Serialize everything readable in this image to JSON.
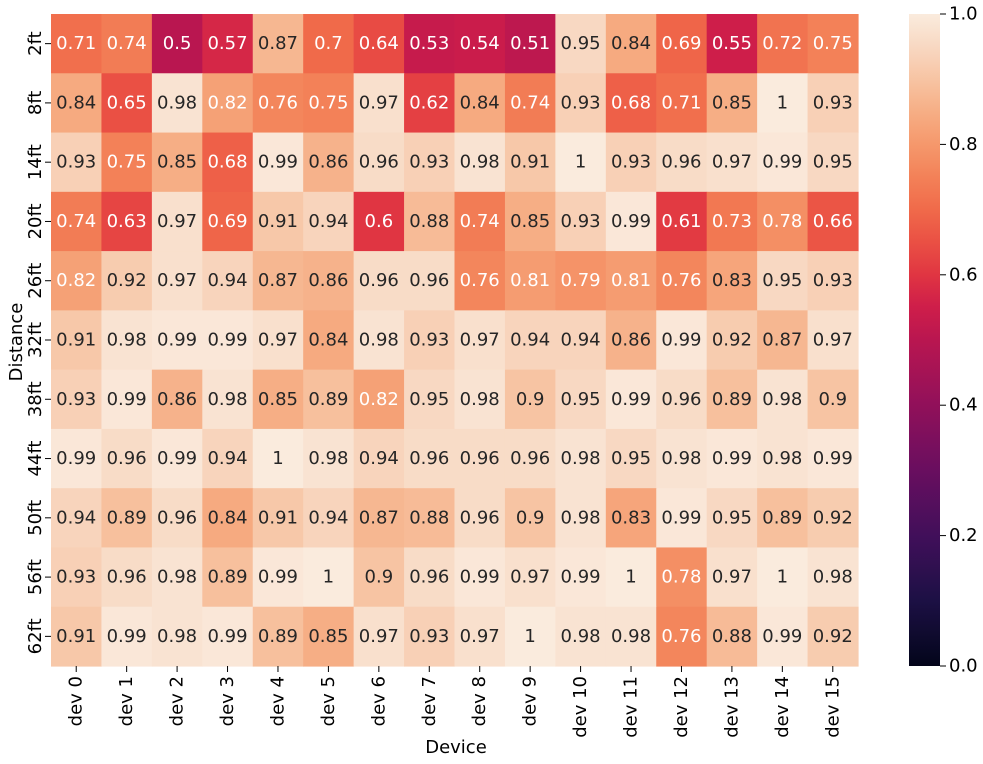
{
  "chart_data": {
    "type": "heatmap",
    "xlabel": "Device",
    "ylabel": "Distance",
    "x_categories": [
      "dev 0",
      "dev 1",
      "dev 2",
      "dev 3",
      "dev 4",
      "dev 5",
      "dev 6",
      "dev 7",
      "dev 8",
      "dev 9",
      "dev 10",
      "dev 11",
      "dev 12",
      "dev 13",
      "dev 14",
      "dev 15"
    ],
    "y_categories": [
      "2ft",
      "8ft",
      "14ft",
      "20ft",
      "26ft",
      "32ft",
      "38ft",
      "44ft",
      "50ft",
      "56ft",
      "62ft"
    ],
    "values": [
      [
        0.71,
        0.74,
        0.5,
        0.57,
        0.87,
        0.7,
        0.64,
        0.53,
        0.54,
        0.51,
        0.95,
        0.84,
        0.69,
        0.55,
        0.72,
        0.75
      ],
      [
        0.84,
        0.65,
        0.98,
        0.82,
        0.76,
        0.75,
        0.97,
        0.62,
        0.84,
        0.74,
        0.93,
        0.68,
        0.71,
        0.85,
        1,
        0.93
      ],
      [
        0.93,
        0.75,
        0.85,
        0.68,
        0.99,
        0.86,
        0.96,
        0.93,
        0.98,
        0.91,
        1,
        0.93,
        0.96,
        0.97,
        0.99,
        0.95
      ],
      [
        0.74,
        0.63,
        0.97,
        0.69,
        0.91,
        0.94,
        0.6,
        0.88,
        0.74,
        0.85,
        0.93,
        0.99,
        0.61,
        0.73,
        0.78,
        0.66
      ],
      [
        0.82,
        0.92,
        0.97,
        0.94,
        0.87,
        0.86,
        0.96,
        0.96,
        0.76,
        0.81,
        0.79,
        0.81,
        0.76,
        0.83,
        0.95,
        0.93
      ],
      [
        0.91,
        0.98,
        0.99,
        0.99,
        0.97,
        0.84,
        0.98,
        0.93,
        0.97,
        0.94,
        0.94,
        0.86,
        0.99,
        0.92,
        0.87,
        0.97
      ],
      [
        0.93,
        0.99,
        0.86,
        0.98,
        0.85,
        0.89,
        0.82,
        0.95,
        0.98,
        0.9,
        0.95,
        0.99,
        0.96,
        0.89,
        0.98,
        0.9
      ],
      [
        0.99,
        0.96,
        0.99,
        0.94,
        1,
        0.98,
        0.94,
        0.96,
        0.96,
        0.96,
        0.98,
        0.95,
        0.98,
        0.99,
        0.98,
        0.99
      ],
      [
        0.94,
        0.89,
        0.96,
        0.84,
        0.91,
        0.94,
        0.87,
        0.88,
        0.96,
        0.9,
        0.98,
        0.83,
        0.99,
        0.95,
        0.89,
        0.92
      ],
      [
        0.93,
        0.96,
        0.98,
        0.89,
        0.99,
        1,
        0.9,
        0.96,
        0.99,
        0.97,
        0.99,
        1,
        0.78,
        0.97,
        1,
        0.98
      ],
      [
        0.91,
        0.99,
        0.98,
        0.99,
        0.89,
        0.85,
        0.97,
        0.93,
        0.97,
        1,
        0.98,
        0.98,
        0.76,
        0.88,
        0.99,
        0.92
      ]
    ],
    "colorbar": {
      "range": [
        0.0,
        1.0
      ],
      "ticks": [
        0.0,
        0.2,
        0.4,
        0.6,
        0.8,
        1.0
      ],
      "tick_labels": [
        "0.0",
        "0.2",
        "0.4",
        "0.6",
        "0.8",
        "1.0"
      ]
    },
    "colormap": "rocket",
    "annotation_colors": {
      "on_dark": "#ffffff",
      "on_light": "#262626"
    }
  }
}
